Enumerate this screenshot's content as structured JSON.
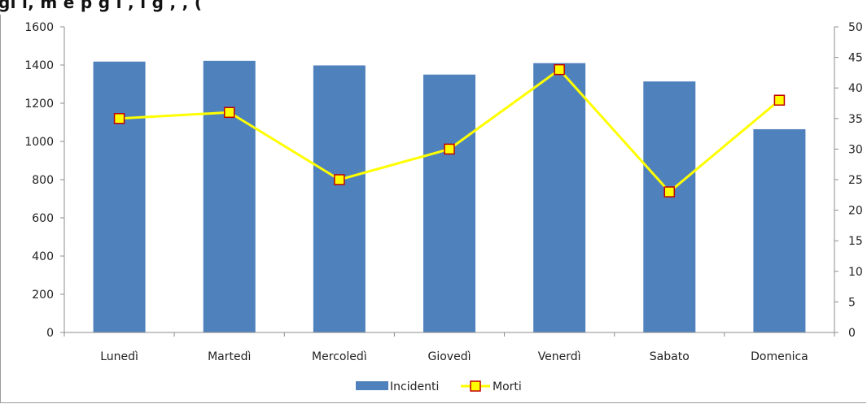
{
  "title_fragment": "gi                          i, m                    e  p  g  i                            ,  i  g  ,       , (",
  "chart_data": {
    "type": "bar",
    "title": "",
    "categories": [
      "Lunedì",
      "Martedì",
      "Mercoledì",
      "Giovedì",
      "Venerdì",
      "Sabato",
      "Domenica"
    ],
    "series": [
      {
        "name": "Incidenti",
        "kind": "bar",
        "axis": "left",
        "color": "#4F81BD",
        "values": [
          1418,
          1422,
          1398,
          1350,
          1410,
          1314,
          1064
        ]
      },
      {
        "name": "Morti",
        "kind": "line",
        "axis": "right",
        "color": "#FFFF00",
        "marker_fill": "#FFFF00",
        "marker_edge": "#C00000",
        "values": [
          35,
          36,
          25,
          30,
          43,
          23,
          38
        ]
      }
    ],
    "y_left": {
      "min": 0,
      "max": 1600,
      "step": 200,
      "ticks": [
        "0",
        "200",
        "400",
        "600",
        "800",
        "1000",
        "1200",
        "1400",
        "1600"
      ]
    },
    "y_right": {
      "min": 0,
      "max": 50,
      "step": 5,
      "ticks": [
        "0",
        "5",
        "10",
        "15",
        "20",
        "25",
        "30",
        "35",
        "40",
        "45",
        "50"
      ]
    },
    "grid": false,
    "legend": {
      "position": "bottom",
      "items": [
        "Incidenti",
        "Morti"
      ]
    }
  }
}
